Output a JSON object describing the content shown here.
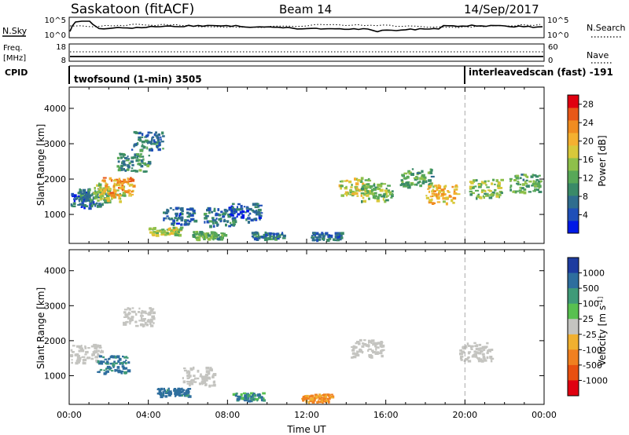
{
  "header": {
    "station": "Saskatoon (fitACF)",
    "beam": "Beam 14",
    "date": "14/Sep/2017"
  },
  "top_panels": {
    "nsky_label": "N.Sky",
    "nsearch_label": "N.Search",
    "noise_ticks": [
      "10^5",
      "10^0"
    ],
    "freq_label": "Freq.",
    "freq_unit": "[MHz]",
    "freq_ticks": [
      "18",
      "8"
    ],
    "nave_label": "Nave",
    "nave_ticks": [
      "60",
      "0"
    ],
    "cpid_label": "CPID",
    "cpid_modes": [
      {
        "name": "twofsound (1-min) 3505",
        "start_hour": 0
      },
      {
        "name": "interleavedscan (fast) -191",
        "start_hour": 20
      }
    ]
  },
  "chart_data": [
    {
      "type": "heatmap",
      "title": "",
      "ylabel": "Slant Range [km]",
      "xlabel": "",
      "xlim": [
        0,
        24
      ],
      "ylim": [
        180,
        4600
      ],
      "yticks": [
        1000,
        2000,
        3000,
        4000
      ],
      "colorbar": {
        "label": "Power [dB]",
        "ticks": [
          "28",
          "24",
          "20",
          "16",
          "12",
          "8",
          "4"
        ],
        "colors": [
          "#0019e6",
          "#1f4fb8",
          "#2f6d8e",
          "#3a8a68",
          "#58a858",
          "#8ec04a",
          "#d8c83a",
          "#f4b030",
          "#f08c20",
          "#e85818",
          "#e00010"
        ]
      },
      "features": [
        {
          "t": 0.5,
          "r": 1450,
          "v": 6
        },
        {
          "t": 1.2,
          "r": 1500,
          "v": 9
        },
        {
          "t": 2.0,
          "r": 1650,
          "v": 16
        },
        {
          "t": 2.4,
          "r": 1800,
          "v": 22
        },
        {
          "t": 3.2,
          "r": 2500,
          "v": 10
        },
        {
          "t": 3.9,
          "r": 3100,
          "v": 8
        },
        {
          "t": 5.5,
          "r": 970,
          "v": 7
        },
        {
          "t": 7.5,
          "r": 950,
          "v": 8
        },
        {
          "t": 8.8,
          "r": 1080,
          "v": 6
        },
        {
          "t": 4.8,
          "r": 550,
          "v": 16
        },
        {
          "t": 7.0,
          "r": 430,
          "v": 12
        },
        {
          "t": 10.0,
          "r": 420,
          "v": 9
        },
        {
          "t": 13.0,
          "r": 400,
          "v": 7
        },
        {
          "t": 14.4,
          "r": 1800,
          "v": 16
        },
        {
          "t": 15.5,
          "r": 1650,
          "v": 14
        },
        {
          "t": 17.5,
          "r": 2050,
          "v": 12
        },
        {
          "t": 18.8,
          "r": 1600,
          "v": 20
        },
        {
          "t": 21.0,
          "r": 1750,
          "v": 14
        },
        {
          "t": 23.0,
          "r": 1900,
          "v": 12
        }
      ]
    },
    {
      "type": "heatmap",
      "title": "",
      "ylabel": "Slant Range [km]",
      "xlabel": "Time UT",
      "xlim": [
        0,
        24
      ],
      "ylim": [
        180,
        4600
      ],
      "xticks": [
        "00:00",
        "04:00",
        "08:00",
        "12:00",
        "16:00",
        "20:00",
        "00:00"
      ],
      "yticks": [
        1000,
        2000,
        3000,
        4000
      ],
      "colorbar": {
        "label": "Velocity [m s^-1]",
        "ticks": [
          "1000",
          "500",
          "100",
          "25",
          "-25",
          "-100",
          "-500",
          "-1000"
        ],
        "colors": [
          "#1e3ca0",
          "#2e6e9e",
          "#3f9a78",
          "#58c050",
          "#c4c4c0",
          "#f0b030",
          "#f08020",
          "#e85010",
          "#e00010"
        ]
      },
      "features": [
        {
          "t": 0.8,
          "r": 1650,
          "v": 0
        },
        {
          "t": 2.2,
          "r": 1350,
          "v": 120
        },
        {
          "t": 3.5,
          "r": 2700,
          "v": 0
        },
        {
          "t": 6.5,
          "r": 1000,
          "v": 0
        },
        {
          "t": 5.2,
          "r": 550,
          "v": 150
        },
        {
          "t": 9.0,
          "r": 420,
          "v": 90
        },
        {
          "t": 12.5,
          "r": 380,
          "v": -120
        },
        {
          "t": 15.0,
          "r": 1800,
          "v": 0
        },
        {
          "t": 20.5,
          "r": 1700,
          "v": 0
        }
      ]
    }
  ]
}
